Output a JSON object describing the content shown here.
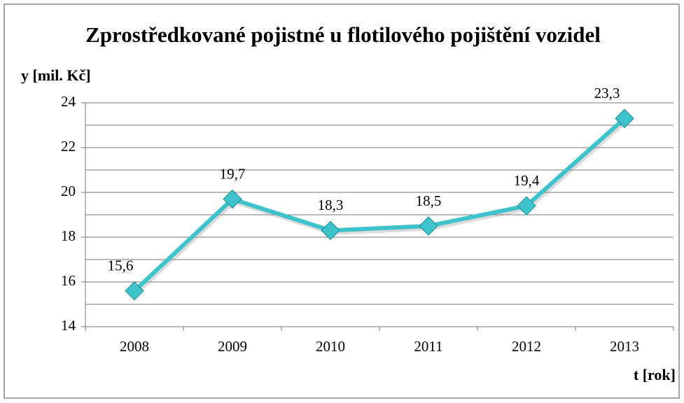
{
  "chart_data": {
    "type": "line",
    "title": "Zprostředkované pojistné u flotilového pojištění vozidel",
    "y_label": "y [mil. Kč]",
    "x_label": "t [rok]",
    "categories": [
      "2008",
      "2009",
      "2010",
      "2011",
      "2012",
      "2013"
    ],
    "values": [
      15.6,
      19.7,
      18.3,
      18.5,
      19.4,
      23.3
    ],
    "value_labels": [
      "15,6",
      "19,7",
      "18,3",
      "18,5",
      "19,4",
      "23,3"
    ],
    "color": "#3ec3cc",
    "ylim": [
      14,
      24
    ],
    "yticks": [
      14,
      16,
      18,
      20,
      22,
      24
    ],
    "minor_yticks": [
      15,
      17,
      19,
      21,
      23
    ],
    "grid": true
  }
}
